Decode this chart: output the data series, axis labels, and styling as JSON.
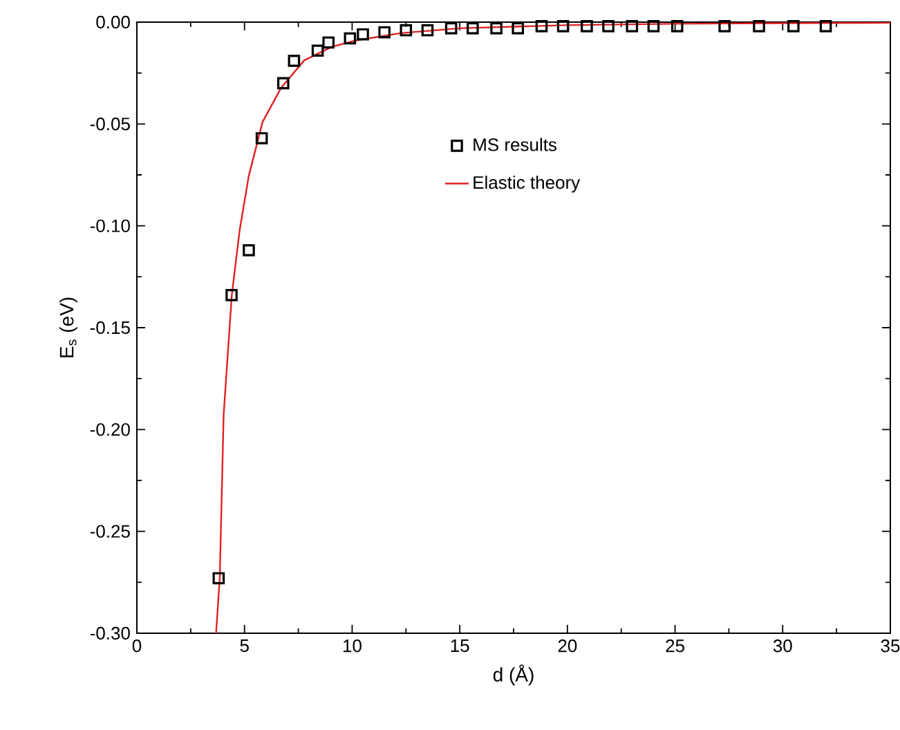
{
  "chart_data": {
    "type": "scatter",
    "xlabel": "d (Å)",
    "ylabel": "E$_{s}$ (eV)",
    "xlim": [
      0,
      35
    ],
    "ylim": [
      -0.3,
      0.0
    ],
    "xticks": [
      0,
      5,
      10,
      15,
      20,
      25,
      30,
      35
    ],
    "yticks": [
      {
        "value": -0.3,
        "label": "-0.30"
      },
      {
        "value": -0.25,
        "label": "-0.25"
      },
      {
        "value": -0.2,
        "label": "-0.20"
      },
      {
        "value": -0.15,
        "label": "-0.15"
      },
      {
        "value": -0.1,
        "label": "-0.10"
      },
      {
        "value": -0.05,
        "label": "-0.05"
      },
      {
        "value": 0.0,
        "label": "0.00"
      }
    ],
    "legend": "top",
    "grid": false,
    "series": [
      {
        "name": "MS results",
        "marker": "square",
        "color": "#000000",
        "x": [
          3.8,
          4.4,
          5.2,
          5.8,
          6.8,
          7.3,
          8.4,
          8.9,
          9.9,
          10.5,
          11.5,
          12.5,
          13.5,
          14.6,
          15.6,
          16.7,
          17.7,
          18.8,
          19.8,
          20.9,
          21.9,
          23.0,
          24.0,
          25.1,
          27.3,
          28.9,
          30.5,
          32.0
        ],
        "values": [
          -0.273,
          -0.134,
          -0.112,
          -0.057,
          -0.03,
          -0.019,
          -0.014,
          -0.01,
          -0.008,
          -0.006,
          -0.005,
          -0.004,
          -0.004,
          -0.003,
          -0.003,
          -0.003,
          -0.003,
          -0.002,
          -0.002,
          -0.002,
          -0.002,
          -0.002,
          -0.002,
          -0.002,
          -0.002,
          -0.002,
          -0.002,
          -0.002
        ]
      },
      {
        "name": "Elastic theory",
        "type": "line",
        "marker": "none",
        "line_style": "solid",
        "color": "#e02020",
        "x": [
          3.68,
          3.85,
          4.03,
          4.41,
          4.77,
          5.2,
          5.84,
          6.7,
          7.77,
          9.06,
          10.13,
          12.27,
          15,
          20,
          25,
          30,
          35
        ],
        "values": [
          -0.3,
          -0.273,
          -0.193,
          -0.134,
          -0.1025,
          -0.0754,
          -0.049,
          -0.0323,
          -0.0188,
          -0.0121,
          -0.0091,
          -0.0054,
          -0.003,
          -0.0015,
          -0.0008,
          -0.0005,
          -0.0003
        ]
      }
    ]
  }
}
